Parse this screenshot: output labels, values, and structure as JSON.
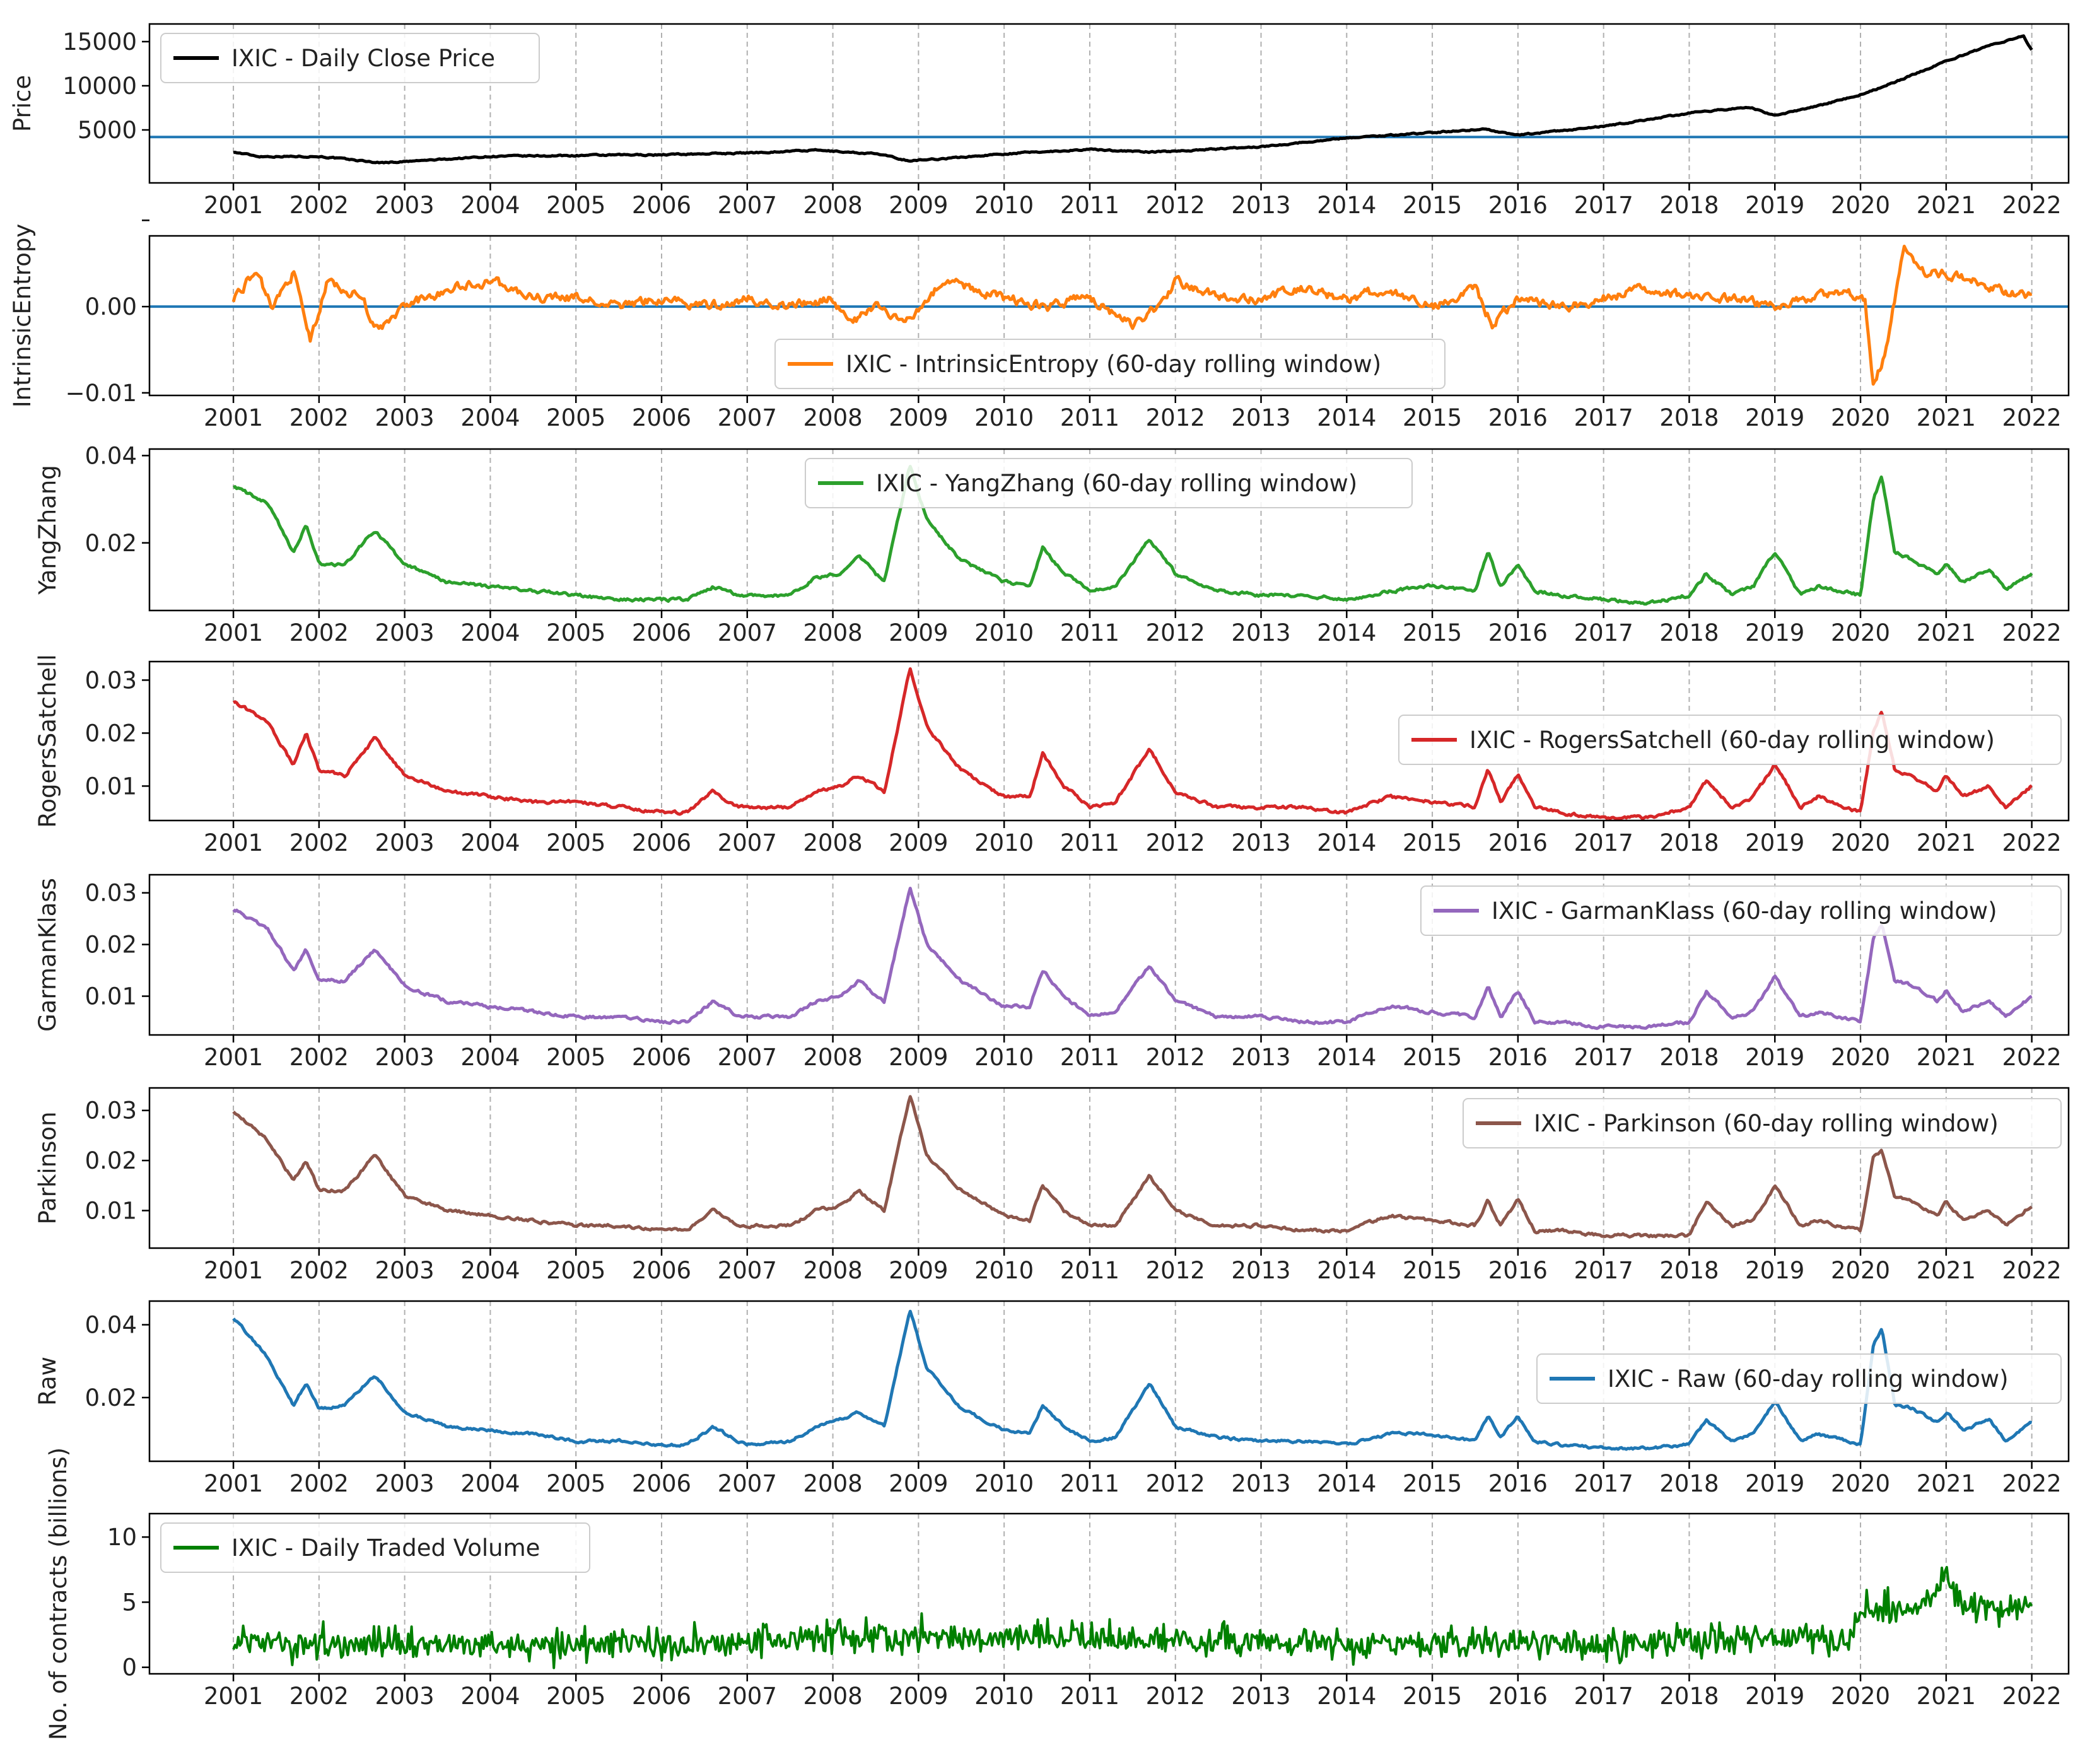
{
  "x_years": [
    "2001",
    "2002",
    "2003",
    "2004",
    "2005",
    "2006",
    "2007",
    "2008",
    "2009",
    "2010",
    "2011",
    "2012",
    "2013",
    "2014",
    "2015",
    "2016",
    "2017",
    "2018",
    "2019",
    "2020",
    "2021",
    "2022"
  ],
  "chart_data": [
    {
      "type": "line",
      "ylabel": "Price",
      "legend": "IXIC - Daily Close Price",
      "color": "#000000",
      "legend_loc": "top-left",
      "hline": 4200,
      "hline_color": "#1f77b4",
      "ylim": [
        -1000,
        17000
      ],
      "yticks": [
        5000,
        10000,
        15000
      ],
      "ytick_labels": [
        "5000",
        "10000",
        "15000"
      ],
      "x": [
        2001.0,
        2001.3,
        2002.0,
        2002.7,
        2003.0,
        2004.0,
        2005.0,
        2006.0,
        2007.0,
        2007.8,
        2008.5,
        2008.9,
        2009.5,
        2010.0,
        2011.0,
        2011.7,
        2012.0,
        2013.0,
        2014.0,
        2015.0,
        2015.6,
        2016.0,
        2016.3,
        2017.0,
        2018.0,
        2018.7,
        2019.0,
        2019.5,
        2020.0,
        2020.15,
        2020.5,
        2021.0,
        2021.5,
        2021.9,
        2022.0
      ],
      "y": [
        2500,
        2000,
        2000,
        1300,
        1400,
        2000,
        2100,
        2200,
        2400,
        2700,
        2300,
        1500,
        1900,
        2300,
        2800,
        2500,
        2600,
        3100,
        4100,
        4700,
        5100,
        4400,
        4700,
        5400,
        6900,
        7600,
        6600,
        7700,
        9000,
        9500,
        10800,
        12800,
        14500,
        15700,
        14000
      ],
      "noise": 120
    },
    {
      "type": "line",
      "ylabel": "IntrinsicEntropy",
      "legend": "IXIC - IntrinsicEntropy (60-day rolling window)",
      "color": "#ff7f0e",
      "legend_loc": "lower-center",
      "hline": 0,
      "hline_color": "#1f77b4",
      "ylim": [
        -0.0103,
        0.0082
      ],
      "yticks": [
        -0.01,
        0,
        0.01
      ],
      "ytick_labels": [
        "−0.01",
        "0.00",
        ""
      ],
      "x": [
        2001.0,
        2001.25,
        2001.45,
        2001.7,
        2001.9,
        2002.1,
        2002.5,
        2002.7,
        2003.0,
        2003.5,
        2004.0,
        2004.5,
        2005.0,
        2005.5,
        2006.0,
        2006.5,
        2007.0,
        2007.5,
        2008.0,
        2008.2,
        2008.5,
        2008.8,
        2009.0,
        2009.3,
        2010.0,
        2010.5,
        2011.0,
        2011.5,
        2011.8,
        2012.0,
        2012.5,
        2013.0,
        2013.5,
        2014.0,
        2014.5,
        2015.0,
        2015.5,
        2015.7,
        2016.0,
        2016.5,
        2017.0,
        2017.5,
        2018.0,
        2018.5,
        2019.0,
        2019.5,
        2019.8,
        2020.05,
        2020.15,
        2020.3,
        2020.5,
        2020.7,
        2021.0,
        2021.3,
        2021.6,
        2022.0
      ],
      "y": [
        0.001,
        0.004,
        0.0,
        0.004,
        -0.004,
        0.003,
        0.001,
        -0.003,
        0.0,
        0.002,
        0.003,
        0.001,
        0.001,
        0.0,
        0.001,
        0.0,
        0.001,
        0.0,
        0.001,
        -0.002,
        0.0,
        -0.002,
        0.0,
        0.003,
        0.001,
        0.0,
        0.001,
        -0.002,
        0.0,
        0.003,
        0.001,
        0.001,
        0.002,
        0.001,
        0.002,
        0.0,
        0.002,
        -0.002,
        0.001,
        0.0,
        0.001,
        0.002,
        0.001,
        0.001,
        0.0,
        0.001,
        0.002,
        0.001,
        -0.009,
        -0.005,
        0.007,
        0.004,
        0.004,
        0.003,
        0.002,
        0.001
      ],
      "noise": 0.0009
    },
    {
      "type": "line",
      "ylabel": "YangZhang",
      "legend": "IXIC - YangZhang (60-day rolling window)",
      "color": "#2ca02c",
      "legend_loc": "upper-center",
      "ylim": [
        0.0045,
        0.0415
      ],
      "yticks": [
        0.02,
        0.04
      ],
      "ytick_labels": [
        "0.02",
        "0.04"
      ],
      "x": [
        2001.0,
        2001.4,
        2001.7,
        2001.85,
        2002.0,
        2002.3,
        2002.65,
        2003.0,
        2003.5,
        2004.0,
        2004.5,
        2005.0,
        2005.5,
        2006.0,
        2006.3,
        2006.6,
        2006.9,
        2007.0,
        2007.5,
        2007.8,
        2008.1,
        2008.3,
        2008.6,
        2008.9,
        2009.1,
        2009.5,
        2010.0,
        2010.3,
        2010.45,
        2010.7,
        2011.0,
        2011.3,
        2011.7,
        2012.0,
        2012.5,
        2013.0,
        2013.5,
        2014.0,
        2014.5,
        2015.0,
        2015.5,
        2015.65,
        2015.8,
        2016.0,
        2016.2,
        2016.5,
        2017.0,
        2017.5,
        2018.0,
        2018.2,
        2018.5,
        2018.75,
        2019.0,
        2019.3,
        2019.5,
        2020.0,
        2020.15,
        2020.25,
        2020.4,
        2020.6,
        2020.9,
        2021.0,
        2021.2,
        2021.5,
        2021.7,
        2022.0
      ],
      "y": [
        0.033,
        0.029,
        0.018,
        0.024,
        0.015,
        0.015,
        0.023,
        0.015,
        0.011,
        0.01,
        0.009,
        0.008,
        0.007,
        0.007,
        0.007,
        0.01,
        0.008,
        0.008,
        0.008,
        0.012,
        0.013,
        0.017,
        0.011,
        0.038,
        0.025,
        0.016,
        0.011,
        0.01,
        0.019,
        0.013,
        0.009,
        0.01,
        0.021,
        0.013,
        0.009,
        0.008,
        0.008,
        0.007,
        0.009,
        0.01,
        0.009,
        0.018,
        0.01,
        0.015,
        0.009,
        0.008,
        0.007,
        0.006,
        0.008,
        0.013,
        0.008,
        0.01,
        0.018,
        0.008,
        0.01,
        0.008,
        0.03,
        0.035,
        0.018,
        0.016,
        0.013,
        0.015,
        0.011,
        0.014,
        0.009,
        0.013
      ],
      "noise": 0.0006
    },
    {
      "type": "line",
      "ylabel": "RogersSatchell",
      "legend": "IXIC - RogersSatchell (60-day rolling window)",
      "color": "#d62728",
      "legend_loc": "center-right",
      "ylim": [
        0.0035,
        0.0335
      ],
      "yticks": [
        0.01,
        0.02,
        0.03
      ],
      "ytick_labels": [
        "0.01",
        "0.02",
        "0.03"
      ],
      "x": [
        2001.0,
        2001.4,
        2001.7,
        2001.85,
        2002.0,
        2002.3,
        2002.65,
        2003.0,
        2003.5,
        2004.0,
        2004.5,
        2005.0,
        2005.5,
        2006.0,
        2006.3,
        2006.6,
        2006.9,
        2007.0,
        2007.5,
        2007.8,
        2008.1,
        2008.3,
        2008.6,
        2008.9,
        2009.1,
        2009.5,
        2010.0,
        2010.3,
        2010.45,
        2010.7,
        2011.0,
        2011.3,
        2011.7,
        2012.0,
        2012.5,
        2013.0,
        2013.5,
        2014.0,
        2014.5,
        2015.0,
        2015.5,
        2015.65,
        2015.8,
        2016.0,
        2016.2,
        2016.5,
        2017.0,
        2017.5,
        2018.0,
        2018.2,
        2018.5,
        2018.75,
        2019.0,
        2019.3,
        2019.5,
        2020.0,
        2020.15,
        2020.25,
        2020.4,
        2020.6,
        2020.9,
        2021.0,
        2021.2,
        2021.5,
        2021.7,
        2022.0
      ],
      "y": [
        0.026,
        0.022,
        0.014,
        0.02,
        0.013,
        0.012,
        0.019,
        0.012,
        0.009,
        0.008,
        0.007,
        0.007,
        0.006,
        0.005,
        0.005,
        0.009,
        0.006,
        0.006,
        0.006,
        0.009,
        0.01,
        0.012,
        0.009,
        0.032,
        0.021,
        0.013,
        0.008,
        0.008,
        0.016,
        0.01,
        0.006,
        0.007,
        0.017,
        0.009,
        0.006,
        0.006,
        0.006,
        0.005,
        0.008,
        0.007,
        0.006,
        0.013,
        0.007,
        0.012,
        0.006,
        0.005,
        0.004,
        0.004,
        0.006,
        0.011,
        0.006,
        0.008,
        0.014,
        0.006,
        0.008,
        0.005,
        0.02,
        0.024,
        0.013,
        0.012,
        0.009,
        0.012,
        0.008,
        0.01,
        0.006,
        0.01
      ],
      "noise": 0.0005
    },
    {
      "type": "line",
      "ylabel": "GarmanKlass",
      "legend": "IXIC - GarmanKlass (60-day rolling window)",
      "color": "#9467bd",
      "legend_loc": "top-right",
      "ylim": [
        0.0025,
        0.0335
      ],
      "yticks": [
        0.01,
        0.02,
        0.03
      ],
      "ytick_labels": [
        "0.01",
        "0.02",
        "0.03"
      ],
      "x": [
        2001.0,
        2001.4,
        2001.7,
        2001.85,
        2002.0,
        2002.3,
        2002.65,
        2003.0,
        2003.5,
        2004.0,
        2004.5,
        2005.0,
        2005.5,
        2006.0,
        2006.3,
        2006.6,
        2006.9,
        2007.0,
        2007.5,
        2007.8,
        2008.1,
        2008.3,
        2008.6,
        2008.9,
        2009.1,
        2009.5,
        2010.0,
        2010.3,
        2010.45,
        2010.7,
        2011.0,
        2011.3,
        2011.7,
        2012.0,
        2012.5,
        2013.0,
        2013.5,
        2014.0,
        2014.5,
        2015.0,
        2015.5,
        2015.65,
        2015.8,
        2016.0,
        2016.2,
        2016.5,
        2017.0,
        2017.5,
        2018.0,
        2018.2,
        2018.5,
        2018.75,
        2019.0,
        2019.3,
        2019.5,
        2020.0,
        2020.15,
        2020.25,
        2020.4,
        2020.6,
        2020.9,
        2021.0,
        2021.2,
        2021.5,
        2021.7,
        2022.0
      ],
      "y": [
        0.027,
        0.023,
        0.015,
        0.019,
        0.013,
        0.013,
        0.019,
        0.012,
        0.009,
        0.008,
        0.007,
        0.006,
        0.006,
        0.005,
        0.005,
        0.009,
        0.006,
        0.006,
        0.006,
        0.009,
        0.01,
        0.013,
        0.009,
        0.031,
        0.02,
        0.013,
        0.008,
        0.008,
        0.015,
        0.01,
        0.006,
        0.007,
        0.016,
        0.009,
        0.006,
        0.006,
        0.005,
        0.005,
        0.008,
        0.007,
        0.006,
        0.012,
        0.006,
        0.011,
        0.005,
        0.005,
        0.004,
        0.004,
        0.005,
        0.011,
        0.006,
        0.007,
        0.014,
        0.006,
        0.007,
        0.005,
        0.021,
        0.024,
        0.013,
        0.012,
        0.009,
        0.011,
        0.007,
        0.009,
        0.006,
        0.01
      ],
      "noise": 0.0005
    },
    {
      "type": "line",
      "ylabel": "Parkinson",
      "legend": "IXIC - Parkinson (60-day rolling window)",
      "color": "#8c564b",
      "legend_loc": "top-right",
      "ylim": [
        0.0025,
        0.0345
      ],
      "yticks": [
        0.01,
        0.02,
        0.03
      ],
      "ytick_labels": [
        "0.01",
        "0.02",
        "0.03"
      ],
      "x": [
        2001.0,
        2001.4,
        2001.7,
        2001.85,
        2002.0,
        2002.3,
        2002.65,
        2003.0,
        2003.5,
        2004.0,
        2004.5,
        2005.0,
        2005.5,
        2006.0,
        2006.3,
        2006.6,
        2006.9,
        2007.0,
        2007.5,
        2007.8,
        2008.1,
        2008.3,
        2008.6,
        2008.9,
        2009.1,
        2009.5,
        2010.0,
        2010.3,
        2010.45,
        2010.7,
        2011.0,
        2011.3,
        2011.7,
        2012.0,
        2012.5,
        2013.0,
        2013.5,
        2014.0,
        2014.5,
        2015.0,
        2015.5,
        2015.65,
        2015.8,
        2016.0,
        2016.2,
        2016.5,
        2017.0,
        2017.5,
        2018.0,
        2018.2,
        2018.5,
        2018.75,
        2019.0,
        2019.3,
        2019.5,
        2020.0,
        2020.15,
        2020.25,
        2020.4,
        2020.6,
        2020.9,
        2021.0,
        2021.2,
        2021.5,
        2021.7,
        2022.0
      ],
      "y": [
        0.03,
        0.024,
        0.016,
        0.02,
        0.014,
        0.014,
        0.021,
        0.013,
        0.01,
        0.009,
        0.008,
        0.007,
        0.007,
        0.006,
        0.006,
        0.01,
        0.007,
        0.007,
        0.007,
        0.01,
        0.011,
        0.014,
        0.01,
        0.033,
        0.021,
        0.014,
        0.009,
        0.008,
        0.015,
        0.01,
        0.007,
        0.007,
        0.017,
        0.01,
        0.007,
        0.007,
        0.006,
        0.006,
        0.009,
        0.008,
        0.007,
        0.012,
        0.007,
        0.012,
        0.006,
        0.006,
        0.005,
        0.005,
        0.005,
        0.012,
        0.007,
        0.008,
        0.015,
        0.007,
        0.008,
        0.006,
        0.021,
        0.022,
        0.013,
        0.012,
        0.009,
        0.012,
        0.008,
        0.01,
        0.007,
        0.011
      ],
      "noise": 0.0005
    },
    {
      "type": "line",
      "ylabel": "Raw",
      "legend": "IXIC - Raw (60-day rolling window)",
      "color": "#1f77b4",
      "legend_loc": "center-right",
      "ylim": [
        0.0025,
        0.0465
      ],
      "yticks": [
        0.02,
        0.04
      ],
      "ytick_labels": [
        "0.02",
        "0.04"
      ],
      "x": [
        2001.0,
        2001.4,
        2001.7,
        2001.85,
        2002.0,
        2002.3,
        2002.65,
        2003.0,
        2003.5,
        2004.0,
        2004.5,
        2005.0,
        2005.5,
        2006.0,
        2006.3,
        2006.6,
        2006.9,
        2007.0,
        2007.5,
        2007.8,
        2008.1,
        2008.3,
        2008.6,
        2008.9,
        2009.1,
        2009.5,
        2010.0,
        2010.3,
        2010.45,
        2010.7,
        2011.0,
        2011.3,
        2011.7,
        2012.0,
        2012.5,
        2013.0,
        2013.5,
        2014.0,
        2014.5,
        2015.0,
        2015.5,
        2015.65,
        2015.8,
        2016.0,
        2016.2,
        2016.5,
        2017.0,
        2017.5,
        2018.0,
        2018.2,
        2018.5,
        2018.75,
        2019.0,
        2019.3,
        2019.5,
        2020.0,
        2020.15,
        2020.25,
        2020.4,
        2020.6,
        2020.9,
        2021.0,
        2021.2,
        2021.5,
        2021.7,
        2022.0
      ],
      "y": [
        0.042,
        0.031,
        0.018,
        0.024,
        0.017,
        0.018,
        0.026,
        0.016,
        0.012,
        0.011,
        0.01,
        0.008,
        0.008,
        0.007,
        0.007,
        0.012,
        0.008,
        0.007,
        0.008,
        0.012,
        0.014,
        0.016,
        0.012,
        0.044,
        0.028,
        0.017,
        0.011,
        0.01,
        0.018,
        0.012,
        0.008,
        0.009,
        0.024,
        0.012,
        0.009,
        0.008,
        0.008,
        0.007,
        0.01,
        0.01,
        0.008,
        0.015,
        0.009,
        0.015,
        0.008,
        0.007,
        0.006,
        0.006,
        0.007,
        0.014,
        0.008,
        0.01,
        0.019,
        0.008,
        0.01,
        0.007,
        0.034,
        0.039,
        0.018,
        0.017,
        0.013,
        0.016,
        0.011,
        0.014,
        0.008,
        0.013
      ],
      "noise": 0.0006
    },
    {
      "type": "line",
      "ylabel": "No. of contracts (billions)",
      "legend": "IXIC - Daily Traded Volume",
      "color": "#008000",
      "legend_loc": "top-left",
      "ylim": [
        -0.5,
        11.8
      ],
      "yticks": [
        0,
        5,
        10
      ],
      "ytick_labels": [
        "0",
        "5",
        "10"
      ],
      "x": [
        2001.0,
        2002.0,
        2003.0,
        2004.0,
        2005.0,
        2006.0,
        2007.0,
        2008.0,
        2009.0,
        2010.0,
        2011.0,
        2012.0,
        2013.0,
        2014.0,
        2015.0,
        2016.0,
        2017.0,
        2018.0,
        2019.0,
        2019.9,
        2020.0,
        2020.3,
        2020.6,
        2020.9,
        2021.0,
        2021.2,
        2021.6,
        2022.0
      ],
      "y": [
        2.0,
        1.8,
        1.6,
        1.7,
        1.7,
        1.8,
        2.0,
        2.3,
        2.3,
        2.4,
        2.2,
        2.0,
        1.9,
        1.8,
        1.9,
        1.9,
        1.8,
        2.1,
        2.3,
        2.2,
        4.2,
        4.5,
        4.2,
        6.0,
        7.0,
        5.0,
        4.5,
        4.6
      ],
      "noise": 0.6
    }
  ]
}
